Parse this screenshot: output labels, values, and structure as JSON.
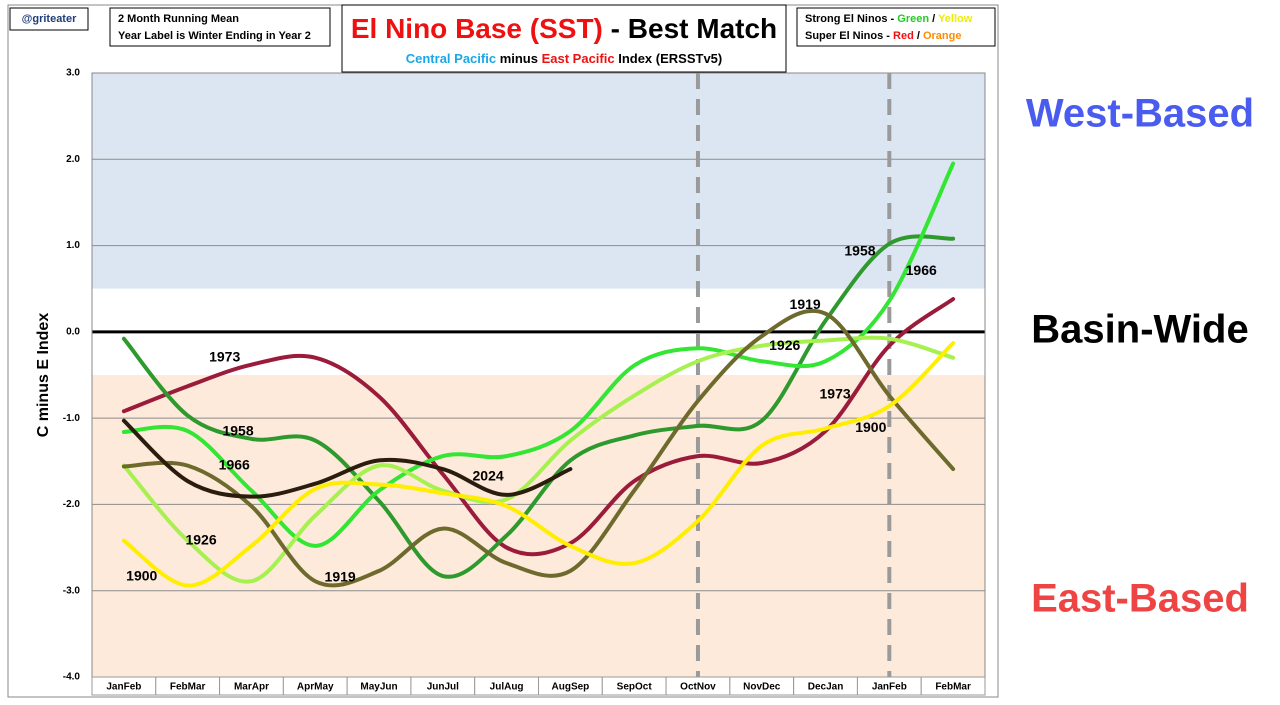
{
  "chart_data": {
    "type": "line",
    "handle": "@griteater",
    "notes": [
      "2 Month Running Mean",
      "Year Label is Winter Ending in Year 2"
    ],
    "title": [
      {
        "text": "El Nino Base (SST)",
        "color": "#ee1111"
      },
      {
        "text": " - Best Match",
        "color": "#000000"
      }
    ],
    "subtitle": [
      {
        "text": "Central Pacific",
        "color": "#1aa7e6"
      },
      {
        "text": " minus ",
        "color": "#000000"
      },
      {
        "text": "East Pacific",
        "color": "#ee1111"
      },
      {
        "text": " Index (ERSSTv5)",
        "color": "#000000"
      }
    ],
    "key": [
      [
        {
          "text": "Strong El Ninos - ",
          "color": "#000000"
        },
        {
          "text": "Green",
          "color": "#22cc22"
        },
        {
          "text": " / ",
          "color": "#000000"
        },
        {
          "text": "Yellow",
          "color": "#eeee00"
        }
      ],
      [
        {
          "text": "Super El Ninos - ",
          "color": "#000000"
        },
        {
          "text": "Red",
          "color": "#ee1111"
        },
        {
          "text": " / ",
          "color": "#000000"
        },
        {
          "text": "Orange",
          "color": "#ff8c00"
        }
      ]
    ],
    "y_label": "C minus E Index",
    "categories": [
      "JanFeb",
      "FebMar",
      "MarApr",
      "AprMay",
      "MayJun",
      "JunJul",
      "JulAug",
      "AugSep",
      "SepOct",
      "OctNov",
      "NovDec",
      "DecJan",
      "JanFeb",
      "FebMar"
    ],
    "ylim": [
      -4,
      3
    ],
    "yticks": [
      {
        "value": -4,
        "label": "-4.0"
      },
      {
        "value": -3,
        "label": "-3.0"
      },
      {
        "value": -2,
        "label": "-2.0"
      },
      {
        "value": -1,
        "label": "-1.0"
      },
      {
        "value": 0,
        "label": "0.0"
      },
      {
        "value": 1,
        "label": "1.0"
      },
      {
        "value": 2,
        "label": "2.0"
      },
      {
        "value": 3,
        "label": "3.0"
      }
    ],
    "grid": true,
    "zero_line": true,
    "vlines": [
      9,
      12
    ],
    "regions": [
      {
        "label": "West-Based",
        "from": 0.5,
        "to": 3,
        "fill": "#dce6f2",
        "color": "#4a5cf0"
      },
      {
        "label": "Basin-Wide",
        "from": -0.5,
        "to": 0.5,
        "fill": "#ffffff",
        "color": "#000000"
      },
      {
        "label": "East-Based",
        "from": -4,
        "to": -0.5,
        "fill": "#fdeada",
        "color": "#ef4444"
      }
    ],
    "series": [
      {
        "name": "1973",
        "color": "#9b1b3b",
        "values": [
          -0.92,
          -0.63,
          -0.38,
          -0.3,
          -0.75,
          -1.65,
          -2.5,
          -2.45,
          -1.73,
          -1.44,
          -1.52,
          -1.15,
          -0.16,
          0.38
        ]
      },
      {
        "name": "1958",
        "color": "#2e9a2e",
        "values": [
          -0.08,
          -0.97,
          -1.24,
          -1.26,
          -1.96,
          -2.83,
          -2.36,
          -1.49,
          -1.2,
          -1.09,
          -1.03,
          0.13,
          1.02,
          1.08
        ]
      },
      {
        "name": "1966",
        "color": "#33e633",
        "values": [
          -1.16,
          -1.15,
          -1.84,
          -2.48,
          -1.84,
          -1.44,
          -1.44,
          -1.15,
          -0.39,
          -0.19,
          -0.34,
          -0.34,
          0.36,
          1.95
        ]
      },
      {
        "name": "1926",
        "color": "#a6f050",
        "values": [
          -1.55,
          -2.42,
          -2.89,
          -2.13,
          -1.55,
          -1.84,
          -1.94,
          -1.26,
          -0.74,
          -0.34,
          -0.16,
          -0.1,
          -0.08,
          -0.3
        ]
      },
      {
        "name": "1919",
        "color": "#6e6a2e",
        "values": [
          -1.56,
          -1.55,
          -2.02,
          -2.89,
          -2.77,
          -2.28,
          -2.68,
          -2.77,
          -1.84,
          -0.8,
          -0.05,
          0.21,
          -0.74,
          -1.59
        ]
      },
      {
        "name": "1900",
        "color": "#ffee00",
        "values": [
          -2.42,
          -2.94,
          -2.48,
          -1.82,
          -1.77,
          -1.87,
          -2.02,
          -2.48,
          -2.68,
          -2.19,
          -1.32,
          -1.12,
          -0.86,
          -0.13
        ]
      },
      {
        "name": "2024",
        "color": "#2b1d0e",
        "values": [
          -1.03,
          -1.73,
          -1.91,
          -1.76,
          -1.49,
          -1.59,
          -1.89,
          -1.59,
          null,
          null,
          null,
          null,
          null,
          null
        ]
      }
    ],
    "annotations": [
      {
        "text": "1973",
        "x": 1.58,
        "y": -0.3
      },
      {
        "text": "1958",
        "x": 1.79,
        "y": -1.16
      },
      {
        "text": "1966",
        "x": 1.73,
        "y": -1.55
      },
      {
        "text": "1926",
        "x": 1.21,
        "y": -2.42
      },
      {
        "text": "1900",
        "x": 0.28,
        "y": -2.84
      },
      {
        "text": "1919",
        "x": 3.39,
        "y": -2.85
      },
      {
        "text": "2024",
        "x": 5.71,
        "y": -1.68
      },
      {
        "text": "1919",
        "x": 10.68,
        "y": 0.31
      },
      {
        "text": "1926",
        "x": 10.36,
        "y": -0.17
      },
      {
        "text": "1958",
        "x": 11.54,
        "y": 0.93
      },
      {
        "text": "1966",
        "x": 12.5,
        "y": 0.7
      },
      {
        "text": "1973",
        "x": 11.15,
        "y": -0.73
      },
      {
        "text": "1900",
        "x": 11.71,
        "y": -1.12
      }
    ]
  }
}
